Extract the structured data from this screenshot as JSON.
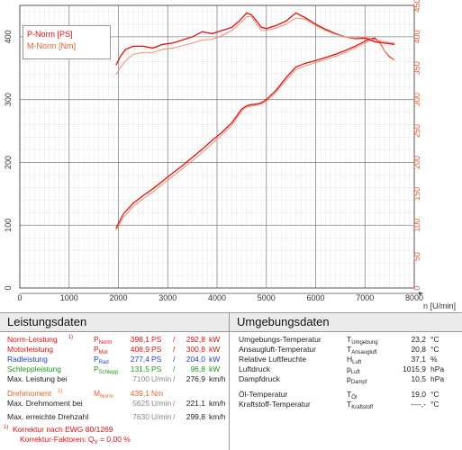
{
  "chart_data": {
    "type": "line",
    "xlabel": "n [U/min]",
    "xlim": [
      0,
      8000
    ],
    "x_ticks": [
      "0",
      "1000",
      "2000",
      "3000",
      "4000",
      "5000",
      "6000",
      "7000",
      "8000"
    ],
    "left_axis": {
      "ylim": [
        0,
        450
      ],
      "ticks": [
        "0",
        "100",
        "200",
        "300",
        "400"
      ]
    },
    "right_axis": {
      "ylim": [
        0,
        450
      ],
      "ticks": [
        "0",
        "50",
        "100",
        "150",
        "200",
        "250",
        "300",
        "350",
        "400",
        "450"
      ]
    },
    "grid": true,
    "legend": {
      "placement": "top-left",
      "entries": [
        "P-Norm [PS]",
        "M-Norm [Nm]"
      ]
    },
    "series": [
      {
        "name": "P-Norm [PS]",
        "axis": "left",
        "color": "#e01010",
        "x": [
          1950,
          2100,
          2300,
          2500,
          2700,
          3000,
          3300,
          3500,
          3700,
          3900,
          4100,
          4300,
          4500,
          4600,
          4700,
          4800,
          4900,
          5000,
          5200,
          5400,
          5600,
          5800,
          6000,
          6200,
          6400,
          6600,
          6800,
          7000,
          7100,
          7200,
          7300,
          7400,
          7500,
          7600
        ],
        "y": [
          95,
          118,
          135,
          147,
          158,
          177,
          195,
          208,
          221,
          235,
          248,
          263,
          285,
          290,
          292,
          293,
          295,
          300,
          315,
          335,
          352,
          358,
          362,
          367,
          372,
          378,
          385,
          393,
          397,
          398,
          391,
          377,
          368,
          363
        ]
      },
      {
        "name": "",
        "axis": "left",
        "color": "#f09070",
        "x": [
          1950,
          2100,
          2300,
          2500,
          2700,
          3000,
          3300,
          3500,
          3700,
          3900,
          4100,
          4300,
          4500,
          4600,
          4700,
          4800,
          4900,
          5000,
          5200,
          5400,
          5600,
          5800,
          6000,
          6200,
          6400,
          6600,
          6800,
          7000,
          7100,
          7200,
          7300,
          7400,
          7500,
          7600
        ],
        "y": [
          92,
          112,
          130,
          142,
          153,
          172,
          190,
          203,
          216,
          230,
          244,
          259,
          282,
          288,
          290,
          291,
          293,
          297,
          312,
          331,
          348,
          354,
          359,
          364,
          369,
          375,
          382,
          390,
          394,
          396,
          390,
          377,
          367,
          363
        ]
      },
      {
        "name": "M-Norm [Nm]",
        "axis": "right",
        "color": "#e01010",
        "x": [
          1950,
          2050,
          2150,
          2300,
          2500,
          2700,
          2900,
          3100,
          3300,
          3500,
          3700,
          3900,
          4100,
          4300,
          4450,
          4600,
          4700,
          4800,
          4900,
          5000,
          5200,
          5400,
          5600,
          5800,
          6000,
          6200,
          6400,
          6600,
          6800,
          7000,
          7200,
          7400,
          7600
        ],
        "y": [
          355,
          370,
          380,
          385,
          385,
          382,
          388,
          390,
          395,
          400,
          408,
          405,
          410,
          415,
          425,
          438,
          435,
          425,
          415,
          413,
          418,
          425,
          438,
          430,
          420,
          412,
          405,
          400,
          397,
          398,
          392,
          390,
          388
        ]
      },
      {
        "name": "",
        "axis": "right",
        "color": "#f09070",
        "x": [
          1950,
          2050,
          2150,
          2300,
          2500,
          2700,
          2900,
          3100,
          3300,
          3500,
          3700,
          3900,
          4100,
          4300,
          4450,
          4600,
          4700,
          4800,
          4900,
          5000,
          5200,
          5400,
          5600,
          5800,
          6000,
          6200,
          6400,
          6600,
          6800,
          7000,
          7200,
          7400,
          7600
        ],
        "y": [
          340,
          352,
          362,
          372,
          375,
          375,
          380,
          382,
          386,
          390,
          395,
          396,
          402,
          410,
          420,
          432,
          432,
          420,
          410,
          410,
          414,
          420,
          430,
          428,
          418,
          410,
          404,
          400,
          398,
          400,
          395,
          392,
          390
        ]
      }
    ]
  },
  "leistung": {
    "title": "Leistungsdaten",
    "rows": [
      {
        "label": "Norm-Leistung",
        "sup": "1)",
        "sym": "P",
        "sub": "Norm",
        "v1": "398,1",
        "u1": "PS",
        "sep": "/",
        "v2": "292,8",
        "u2": "kW",
        "color": "#e01010"
      },
      {
        "label": "Motorleistung",
        "sup": "",
        "sym": "P",
        "sub": "Mot",
        "v1": "408,9",
        "u1": "PS",
        "sep": "/",
        "v2": "300,8",
        "u2": "kW",
        "color": "#e01010"
      },
      {
        "label": "Radleistung",
        "sup": "",
        "sym": "P",
        "sub": "Rad",
        "v1": "277,4",
        "u1": "PS",
        "sep": "/",
        "v2": "204,0",
        "u2": "kW",
        "color": "#2040d0"
      },
      {
        "label": "Schleppleistung",
        "sup": "",
        "sym": "P",
        "sub": "Schlepp",
        "v1": "131,5",
        "u1": "PS",
        "sep": "/",
        "v2": "96,8",
        "u2": "kW",
        "color": "#1a9a1a"
      },
      {
        "label": "Max. Leistung bei",
        "sup": "",
        "sym": "",
        "sub": "",
        "v1": "7100",
        "u1": "U/min",
        "sep": "/",
        "v2": "276,9",
        "u2": "km/h",
        "color": "#222"
      }
    ],
    "drehmoment": {
      "label": "Drehmoment",
      "sup": "1)",
      "sym": "M",
      "sub": "Norm",
      "v1": "439,1",
      "u1": "Nm",
      "color": "#e06030"
    },
    "max_drehmoment": {
      "label": "Max. Drehmoment bei",
      "v1": "5625",
      "u1": "U/min",
      "sep": "/",
      "v2": "221,1",
      "u2": "km/h"
    },
    "max_drehzahl": {
      "label": "Max. erreichte Drehzahl",
      "v1": "7630",
      "u1": "U/min",
      "sep": "/",
      "v2": "299,8",
      "u2": "km/h"
    },
    "korrektur": "Korrektur nach EWG 80/1269",
    "korrektur_sup": "1)",
    "faktoren_label": "Korrektur-Faktoren: Q",
    "faktoren_sub": "V",
    "faktoren_value": "=   0,00 %"
  },
  "umgebung": {
    "title": "Umgebungsdaten",
    "rows": [
      {
        "label": "Umgebungs-Temperatur",
        "sym": "T",
        "sub": "Umgebung",
        "value": "23,2",
        "unit": "°C"
      },
      {
        "label": "Ansaugluft-Temperatur",
        "sym": "T",
        "sub": "Ansaugluft",
        "value": "20,8",
        "unit": "°C"
      },
      {
        "label": "Relative Luftfeuchte",
        "sym": "H",
        "sub": "Luft",
        "value": "37,1",
        "unit": "%"
      },
      {
        "label": "Luftdruck",
        "sym": "p",
        "sub": "Luft",
        "value": "1015,9",
        "unit": "hPa"
      },
      {
        "label": "Dampfdruck",
        "sym": "p",
        "sub": "Dampf",
        "value": "10,5",
        "unit": "hPa"
      },
      {
        "label": "Öl-Temperatur",
        "sym": "T",
        "sub": "Öl",
        "value": "19,0",
        "unit": "°C"
      },
      {
        "label": "Kraftstoff-Temperatur",
        "sym": "T",
        "sub": "Kraftstoff",
        "value": "----,-",
        "unit": "°C"
      }
    ]
  }
}
